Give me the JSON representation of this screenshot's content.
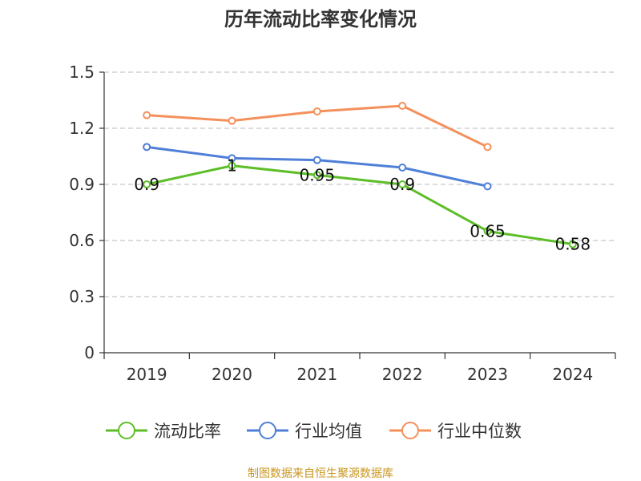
{
  "chart_data": {
    "type": "line",
    "title": "历年流动比率变化情况",
    "categories": [
      "2019",
      "2020",
      "2021",
      "2022",
      "2023",
      "2024"
    ],
    "ylim": [
      0,
      1.5
    ],
    "yticks": [
      "0",
      "0.3",
      "0.6",
      "0.9",
      "1.2",
      "1.5"
    ],
    "grid": true,
    "legend_position": "bottom",
    "series": [
      {
        "name": "流动比率",
        "color": "#5dbe28",
        "values": [
          0.9,
          1.0,
          0.95,
          0.9,
          0.65,
          0.58
        ],
        "labels": [
          "0.9",
          "1",
          "0.95",
          "0.9",
          "0.65",
          "0.58"
        ]
      },
      {
        "name": "行业均值",
        "color": "#4f7fd8",
        "values": [
          1.1,
          1.04,
          1.03,
          0.99,
          0.89,
          null
        ]
      },
      {
        "name": "行业中位数",
        "color": "#f4905c",
        "values": [
          1.27,
          1.24,
          1.29,
          1.32,
          1.1,
          null
        ]
      }
    ],
    "source": "制图数据来自恒生聚源数据库"
  }
}
